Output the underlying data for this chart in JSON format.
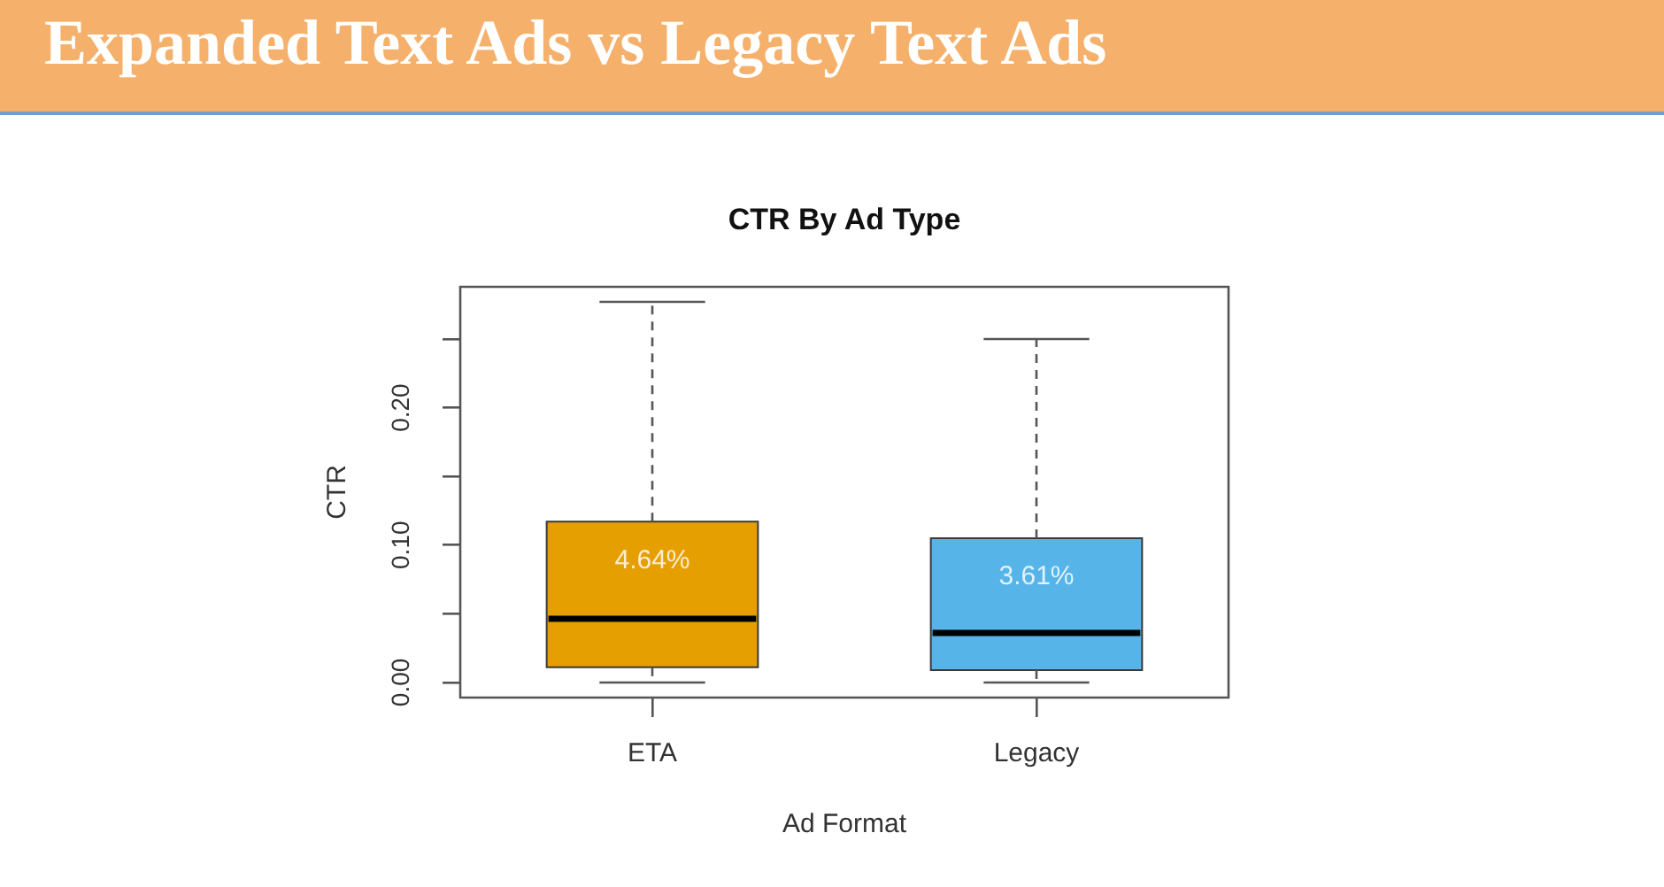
{
  "chart_data": {
    "type": "box",
    "title": "Expanded Text Ads vs Legacy Text Ads",
    "subtitle": "CTR By Ad Type",
    "xlabel": "Ad Format",
    "ylabel": "CTR",
    "categories": [
      "ETA",
      "Legacy"
    ],
    "boxes": [
      {
        "low": 0,
        "q1": 0.011,
        "median": 0.0464,
        "q3": 0.117,
        "high": 0.277
      },
      {
        "low": 0,
        "q1": 0.009,
        "median": 0.0361,
        "q3": 0.105,
        "high": 0.25
      }
    ],
    "colors": [
      "#e69f00",
      "#56b4e9"
    ],
    "ylim": [
      -0.011,
      0.288
    ],
    "yticks": [
      {
        "value": 0,
        "label": "0.00"
      },
      {
        "value": 0.05,
        "label": null
      },
      {
        "value": 0.1,
        "label": "0.10"
      },
      {
        "value": 0.15,
        "label": null
      },
      {
        "value": 0.2,
        "label": "0.20"
      },
      {
        "value": 0.25,
        "label": null
      }
    ],
    "annotations": [
      "4.64%",
      "3.61%"
    ]
  }
}
